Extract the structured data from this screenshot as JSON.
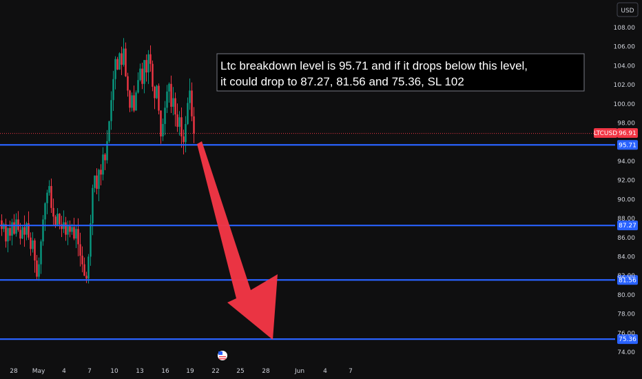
{
  "chart_data": {
    "type": "candlestick",
    "symbol": "LTCUSD",
    "currency": "USD",
    "last_price": 96.91,
    "annotation_lines": [
      "Ltc breakdown level is 95.71 and if it drops below this level,",
      "it could drop to 87.27, 81.56 and 75.36, SL 102"
    ],
    "y_ticks": [
      "108.00",
      "106.00",
      "104.00",
      "102.00",
      "100.00",
      "98.00",
      "94.00",
      "92.00",
      "90.00",
      "88.00",
      "86.00",
      "84.00",
      "82.00",
      "80.00",
      "78.00",
      "76.00",
      "74.00"
    ],
    "x_ticks": [
      "28",
      "May",
      "4",
      "7",
      "10",
      "13",
      "16",
      "19",
      "22",
      "25",
      "28",
      "Jun",
      "4",
      "7"
    ],
    "levels": [
      {
        "value": 95.71,
        "label": "95.71"
      },
      {
        "value": 87.27,
        "label": "87.27"
      },
      {
        "value": 81.56,
        "label": "81.56"
      },
      {
        "value": 75.36,
        "label": "75.36"
      }
    ],
    "ylim": [
      73.5,
      109.5
    ],
    "close_path": [
      [
        0,
        87.8
      ],
      [
        3,
        86.9
      ],
      [
        6,
        87.4
      ],
      [
        9,
        85.6
      ],
      [
        12,
        87.0
      ],
      [
        15,
        86.2
      ],
      [
        18,
        87.6
      ],
      [
        21,
        86.4
      ],
      [
        24,
        87.9
      ],
      [
        27,
        86.8
      ],
      [
        30,
        85.9
      ],
      [
        33,
        87.1
      ],
      [
        36,
        86.3
      ],
      [
        39,
        87.5
      ],
      [
        42,
        86.0
      ],
      [
        45,
        84.8
      ],
      [
        48,
        85.7
      ],
      [
        51,
        83.6
      ],
      [
        54,
        81.9
      ],
      [
        57,
        83.2
      ],
      [
        60,
        85.6
      ],
      [
        63,
        87.9
      ],
      [
        66,
        89.6
      ],
      [
        69,
        90.7
      ],
      [
        72,
        91.4
      ],
      [
        75,
        89.1
      ],
      [
        78,
        88.2
      ],
      [
        81,
        87.3
      ],
      [
        84,
        88.5
      ],
      [
        87,
        87.4
      ],
      [
        90,
        86.9
      ],
      [
        93,
        87.6
      ],
      [
        96,
        86.3
      ],
      [
        99,
        87.2
      ],
      [
        102,
        86.6
      ],
      [
        105,
        87.1
      ],
      [
        108,
        85.9
      ],
      [
        111,
        86.9
      ],
      [
        114,
        85.3
      ],
      [
        117,
        84.1
      ],
      [
        120,
        83.2
      ],
      [
        123,
        82.0
      ],
      [
        126,
        81.7
      ],
      [
        129,
        84.0
      ],
      [
        132,
        87.5
      ],
      [
        135,
        91.2
      ],
      [
        138,
        92.5
      ],
      [
        141,
        91.1
      ],
      [
        144,
        93.1
      ],
      [
        147,
        92.6
      ],
      [
        150,
        94.7
      ],
      [
        153,
        94.1
      ],
      [
        156,
        96.1
      ],
      [
        159,
        98.2
      ],
      [
        162,
        100.4
      ],
      [
        165,
        102.6
      ],
      [
        168,
        104.7
      ],
      [
        171,
        103.6
      ],
      [
        174,
        105.3
      ],
      [
        177,
        104.1
      ],
      [
        180,
        105.8
      ],
      [
        183,
        102.9
      ],
      [
        186,
        101.4
      ],
      [
        189,
        99.6
      ],
      [
        192,
        100.9
      ],
      [
        195,
        99.3
      ],
      [
        198,
        101.2
      ],
      [
        201,
        102.5
      ],
      [
        204,
        103.7
      ],
      [
        207,
        102.1
      ],
      [
        210,
        104.6
      ],
      [
        213,
        103.3
      ],
      [
        216,
        105.2
      ],
      [
        219,
        104.2
      ],
      [
        222,
        101.8
      ],
      [
        225,
        100.6
      ],
      [
        228,
        101.9
      ],
      [
        231,
        99.3
      ],
      [
        234,
        96.6
      ],
      [
        237,
        97.9
      ],
      [
        240,
        99.6
      ],
      [
        243,
        101.3
      ],
      [
        246,
        102.1
      ],
      [
        249,
        99.7
      ],
      [
        252,
        100.6
      ],
      [
        255,
        98.9
      ],
      [
        258,
        97.6
      ],
      [
        261,
        98.6
      ],
      [
        264,
        96.6
      ],
      [
        267,
        96.0
      ],
      [
        270,
        97.9
      ],
      [
        273,
        100.1
      ],
      [
        276,
        101.4
      ],
      [
        279,
        98.7
      ],
      [
        282,
        96.91
      ]
    ]
  }
}
